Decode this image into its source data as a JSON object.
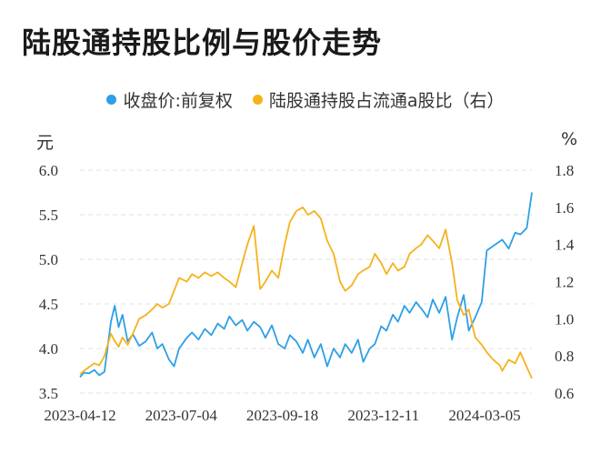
{
  "title": "陆股通持股比例与股价走势",
  "legend": [
    {
      "label": "收盘价:前复权",
      "color": "#2e9fe6"
    },
    {
      "label": "陆股通持股占流通a股比（右）",
      "color": "#f5b21b"
    }
  ],
  "units": {
    "left": "元",
    "right": "%"
  },
  "chart_data": {
    "type": "line",
    "title": "陆股通持股比例与股价走势",
    "x_tick_labels": [
      "2023-04-12",
      "2023-07-04",
      "2023-09-18",
      "2023-12-11",
      "2024-03-05"
    ],
    "y_left": {
      "label": "元",
      "range": [
        3.5,
        6.0
      ],
      "ticks": [
        "3.5",
        "4.0",
        "4.5",
        "5.0",
        "5.5",
        "6.0"
      ]
    },
    "y_right": {
      "label": "%",
      "range": [
        0.6,
        1.8
      ],
      "ticks": [
        "0.6",
        "0.8",
        "1.0",
        "1.2",
        "1.4",
        "1.6",
        "1.8"
      ]
    },
    "grid": "horizontal dashed",
    "legend_position": "top-center",
    "series": [
      {
        "name": "收盘价:前复权",
        "axis": "left",
        "color": "#2e9fe6",
        "values": [
          [
            "2023-04-12",
            3.68
          ],
          [
            "2023-04-15",
            3.73
          ],
          [
            "2023-04-19",
            3.72
          ],
          [
            "2023-04-23",
            3.76
          ],
          [
            "2023-04-27",
            3.7
          ],
          [
            "2023-05-01",
            3.74
          ],
          [
            "2023-05-06",
            4.3
          ],
          [
            "2023-05-09",
            4.48
          ],
          [
            "2023-05-12",
            4.24
          ],
          [
            "2023-05-15",
            4.38
          ],
          [
            "2023-05-19",
            4.08
          ],
          [
            "2023-05-23",
            4.16
          ],
          [
            "2023-05-28",
            4.03
          ],
          [
            "2023-06-02",
            4.08
          ],
          [
            "2023-06-07",
            4.18
          ],
          [
            "2023-06-11",
            4.0
          ],
          [
            "2023-06-15",
            4.05
          ],
          [
            "2023-06-20",
            3.88
          ],
          [
            "2023-06-24",
            3.8
          ],
          [
            "2023-06-28",
            4.0
          ],
          [
            "2023-07-04",
            4.12
          ],
          [
            "2023-07-08",
            4.18
          ],
          [
            "2023-07-13",
            4.1
          ],
          [
            "2023-07-18",
            4.22
          ],
          [
            "2023-07-23",
            4.15
          ],
          [
            "2023-07-28",
            4.28
          ],
          [
            "2023-08-02",
            4.22
          ],
          [
            "2023-08-06",
            4.36
          ],
          [
            "2023-08-11",
            4.26
          ],
          [
            "2023-08-16",
            4.32
          ],
          [
            "2023-08-20",
            4.2
          ],
          [
            "2023-08-25",
            4.3
          ],
          [
            "2023-08-30",
            4.24
          ],
          [
            "2023-09-03",
            4.12
          ],
          [
            "2023-09-08",
            4.26
          ],
          [
            "2023-09-13",
            4.05
          ],
          [
            "2023-09-18",
            4.0
          ],
          [
            "2023-09-22",
            4.15
          ],
          [
            "2023-09-27",
            4.08
          ],
          [
            "2023-10-02",
            3.95
          ],
          [
            "2023-10-06",
            4.1
          ],
          [
            "2023-10-11",
            3.9
          ],
          [
            "2023-10-16",
            4.05
          ],
          [
            "2023-10-21",
            3.8
          ],
          [
            "2023-10-26",
            4.0
          ],
          [
            "2023-10-31",
            3.9
          ],
          [
            "2023-11-04",
            4.05
          ],
          [
            "2023-11-09",
            3.95
          ],
          [
            "2023-11-14",
            4.1
          ],
          [
            "2023-11-18",
            3.85
          ],
          [
            "2023-11-23",
            4.0
          ],
          [
            "2023-11-27",
            4.05
          ],
          [
            "2023-12-02",
            4.25
          ],
          [
            "2023-12-06",
            4.2
          ],
          [
            "2023-12-11",
            4.38
          ],
          [
            "2023-12-15",
            4.3
          ],
          [
            "2023-12-20",
            4.48
          ],
          [
            "2023-12-24",
            4.4
          ],
          [
            "2023-12-29",
            4.52
          ],
          [
            "2024-01-02",
            4.45
          ],
          [
            "2024-01-07",
            4.35
          ],
          [
            "2024-01-11",
            4.55
          ],
          [
            "2024-01-16",
            4.4
          ],
          [
            "2024-01-21",
            4.58
          ],
          [
            "2024-01-26",
            4.1
          ],
          [
            "2024-01-30",
            4.35
          ],
          [
            "2024-02-04",
            4.6
          ],
          [
            "2024-02-08",
            4.2
          ],
          [
            "2024-02-13",
            4.35
          ],
          [
            "2024-02-18",
            4.52
          ],
          [
            "2024-02-22",
            5.1
          ],
          [
            "2024-02-27",
            5.15
          ],
          [
            "2024-03-03",
            5.2
          ],
          [
            "2024-03-05",
            5.22
          ],
          [
            "2024-03-10",
            5.12
          ],
          [
            "2024-03-15",
            5.3
          ],
          [
            "2024-03-19",
            5.28
          ],
          [
            "2024-03-24",
            5.35
          ],
          [
            "2024-03-28",
            5.75
          ]
        ]
      },
      {
        "name": "陆股通持股占流通a股比（右）",
        "axis": "right",
        "color": "#f5b21b",
        "values": [
          [
            "2023-04-12",
            0.7
          ],
          [
            "2023-04-15",
            0.72
          ],
          [
            "2023-04-19",
            0.74
          ],
          [
            "2023-04-23",
            0.76
          ],
          [
            "2023-04-27",
            0.75
          ],
          [
            "2023-05-01",
            0.8
          ],
          [
            "2023-05-06",
            0.92
          ],
          [
            "2023-05-09",
            0.88
          ],
          [
            "2023-05-12",
            0.85
          ],
          [
            "2023-05-15",
            0.9
          ],
          [
            "2023-05-19",
            0.86
          ],
          [
            "2023-05-23",
            0.92
          ],
          [
            "2023-05-28",
            1.0
          ],
          [
            "2023-06-02",
            1.02
          ],
          [
            "2023-06-07",
            1.05
          ],
          [
            "2023-06-11",
            1.08
          ],
          [
            "2023-06-15",
            1.06
          ],
          [
            "2023-06-20",
            1.08
          ],
          [
            "2023-06-24",
            1.15
          ],
          [
            "2023-06-28",
            1.22
          ],
          [
            "2023-07-04",
            1.2
          ],
          [
            "2023-07-08",
            1.24
          ],
          [
            "2023-07-13",
            1.22
          ],
          [
            "2023-07-18",
            1.25
          ],
          [
            "2023-07-23",
            1.23
          ],
          [
            "2023-07-28",
            1.25
          ],
          [
            "2023-08-02",
            1.22
          ],
          [
            "2023-08-06",
            1.2
          ],
          [
            "2023-08-11",
            1.17
          ],
          [
            "2023-08-16",
            1.3
          ],
          [
            "2023-08-20",
            1.4
          ],
          [
            "2023-08-25",
            1.5
          ],
          [
            "2023-08-30",
            1.16
          ],
          [
            "2023-09-03",
            1.2
          ],
          [
            "2023-09-08",
            1.26
          ],
          [
            "2023-09-13",
            1.22
          ],
          [
            "2023-09-18",
            1.4
          ],
          [
            "2023-09-22",
            1.52
          ],
          [
            "2023-09-27",
            1.58
          ],
          [
            "2023-10-02",
            1.6
          ],
          [
            "2023-10-06",
            1.56
          ],
          [
            "2023-10-11",
            1.58
          ],
          [
            "2023-10-16",
            1.54
          ],
          [
            "2023-10-21",
            1.42
          ],
          [
            "2023-10-26",
            1.35
          ],
          [
            "2023-10-31",
            1.2
          ],
          [
            "2023-11-04",
            1.15
          ],
          [
            "2023-11-09",
            1.18
          ],
          [
            "2023-11-14",
            1.24
          ],
          [
            "2023-11-18",
            1.26
          ],
          [
            "2023-11-23",
            1.28
          ],
          [
            "2023-11-27",
            1.35
          ],
          [
            "2023-12-02",
            1.3
          ],
          [
            "2023-12-06",
            1.24
          ],
          [
            "2023-12-11",
            1.3
          ],
          [
            "2023-12-15",
            1.26
          ],
          [
            "2023-12-20",
            1.28
          ],
          [
            "2023-12-24",
            1.35
          ],
          [
            "2023-12-29",
            1.38
          ],
          [
            "2024-01-02",
            1.4
          ],
          [
            "2024-01-07",
            1.45
          ],
          [
            "2024-01-11",
            1.42
          ],
          [
            "2024-01-16",
            1.38
          ],
          [
            "2024-01-21",
            1.48
          ],
          [
            "2024-01-26",
            1.3
          ],
          [
            "2024-01-30",
            1.1
          ],
          [
            "2024-02-04",
            1.02
          ],
          [
            "2024-02-08",
            1.05
          ],
          [
            "2024-02-13",
            0.9
          ],
          [
            "2024-02-18",
            0.86
          ],
          [
            "2024-02-22",
            0.82
          ],
          [
            "2024-02-27",
            0.78
          ],
          [
            "2024-03-03",
            0.75
          ],
          [
            "2024-03-05",
            0.72
          ],
          [
            "2024-03-10",
            0.78
          ],
          [
            "2024-03-15",
            0.76
          ],
          [
            "2024-03-19",
            0.82
          ],
          [
            "2024-03-24",
            0.74
          ],
          [
            "2024-03-28",
            0.68
          ]
        ]
      }
    ]
  }
}
